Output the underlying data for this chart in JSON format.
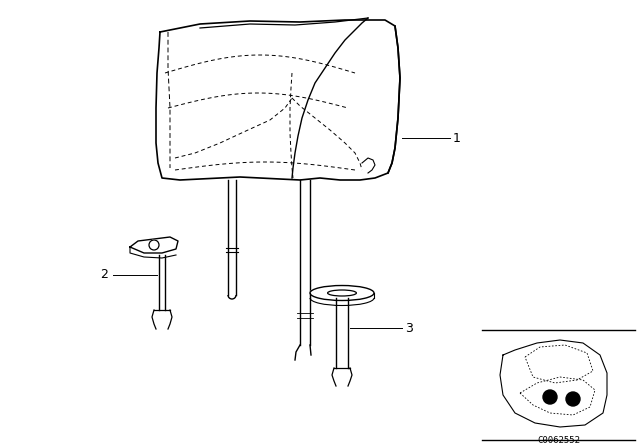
{
  "bg_color": "#ffffff",
  "line_color": "#000000",
  "code_text": "C0062552",
  "fig_width": 6.4,
  "fig_height": 4.48,
  "dpi": 100
}
